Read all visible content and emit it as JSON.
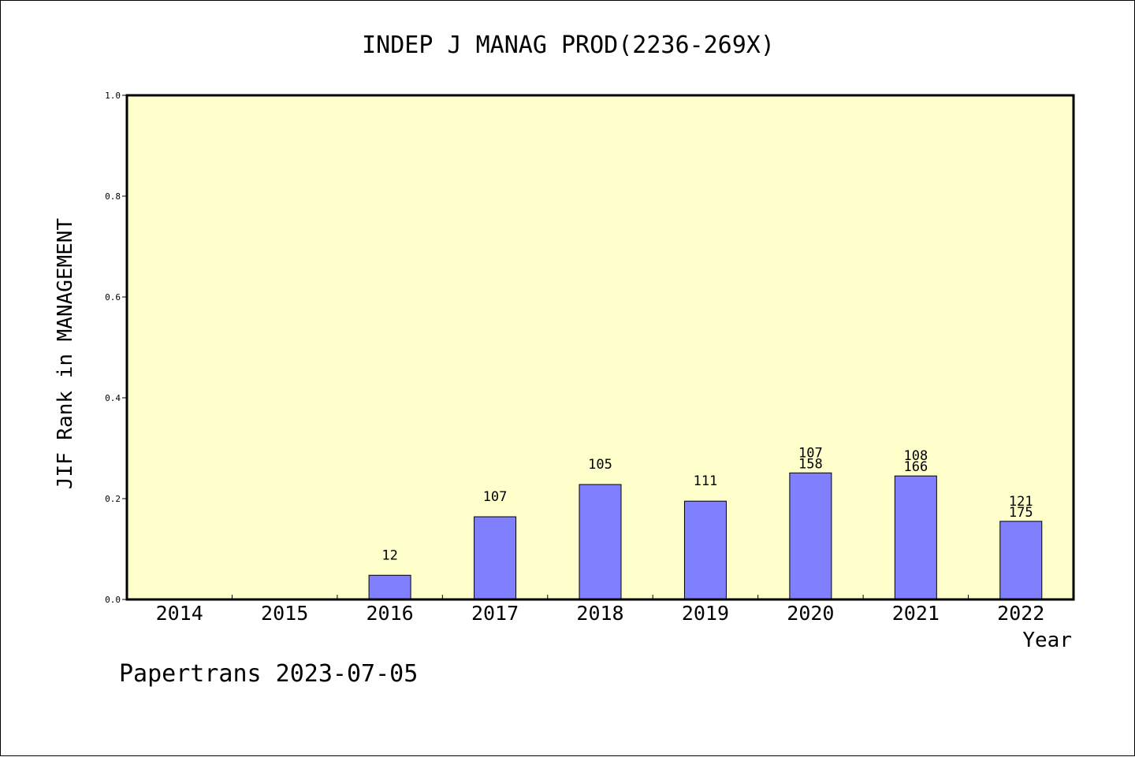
{
  "chart_data": {
    "type": "bar",
    "title": "INDEP J MANAG PROD(2236-269X)",
    "xlabel": "Year",
    "ylabel": "JIF Rank in MANAGEMENT",
    "ylim": [
      0,
      1.0
    ],
    "yticks": [
      "0.0",
      "0.2",
      "0.4",
      "0.6",
      "0.8",
      "1.0"
    ],
    "categories": [
      "2014",
      "2015",
      "2016",
      "2017",
      "2018",
      "2019",
      "2020",
      "2021",
      "2022"
    ],
    "values": [
      null,
      null,
      0.048,
      0.164,
      0.228,
      0.195,
      0.251,
      0.245,
      0.155
    ],
    "label_top": [
      "",
      "",
      "",
      "",
      "",
      "",
      "107",
      "108",
      "121"
    ],
    "label_bottom": [
      "",
      "",
      "12",
      "107",
      "105",
      "111",
      "158",
      "166",
      "175"
    ],
    "grid": false,
    "colors": {
      "plot_background": "#ffffcc",
      "bar_fill": "#8080ff",
      "bar_stroke": "#000000"
    }
  },
  "footer": {
    "text": "Papertrans 2023-07-05"
  }
}
